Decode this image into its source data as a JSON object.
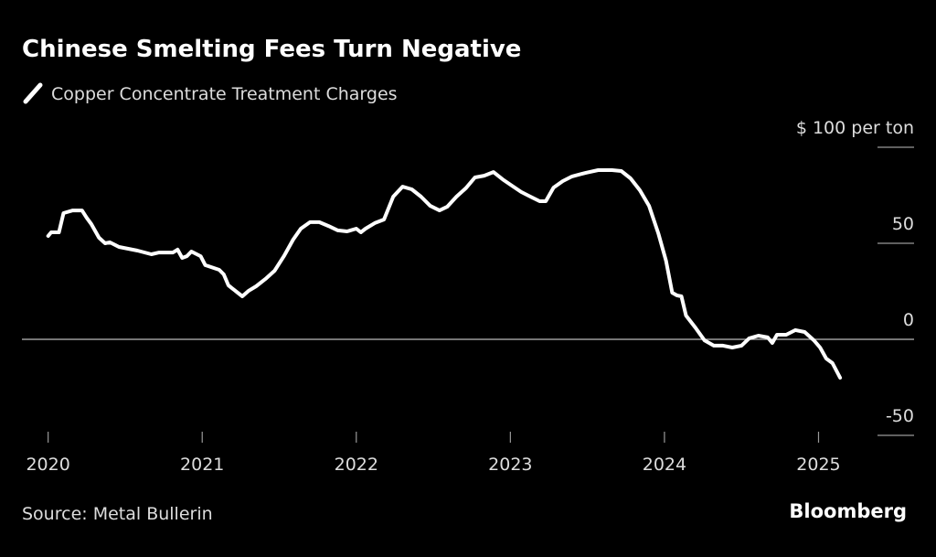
{
  "chart_data": {
    "type": "line",
    "title": "Chinese Smelting Fees Turn Negative",
    "source": "Source: Metal Bullerin",
    "brand": "Bloomberg",
    "series": [
      {
        "name": "Copper Concentrate Treatment Charges",
        "color": "#ffffff",
        "x": [
          2020.0,
          2020.02,
          2020.07,
          2020.1,
          2020.16,
          2020.22,
          2020.25,
          2020.28,
          2020.33,
          2020.37,
          2020.4,
          2020.46,
          2020.58,
          2020.67,
          2020.72,
          2020.81,
          2020.84,
          2020.87,
          2020.9,
          2020.93,
          2020.99,
          2021.02,
          2021.11,
          2021.14,
          2021.17,
          2021.23,
          2021.26,
          2021.3,
          2021.35,
          2021.41,
          2021.47,
          2021.53,
          2021.59,
          2021.64,
          2021.7,
          2021.76,
          2021.82,
          2021.88,
          2021.94,
          2022.0,
          2022.03,
          2022.06,
          2022.12,
          2022.18,
          2022.24,
          2022.3,
          2022.36,
          2022.42,
          2022.48,
          2022.54,
          2022.59,
          2022.65,
          2022.71,
          2022.77,
          2022.83,
          2022.89,
          2022.95,
          2023.01,
          2023.07,
          2023.13,
          2023.19,
          2023.23,
          2023.28,
          2023.34,
          2023.4,
          2023.49,
          2023.57,
          2023.66,
          2023.72,
          2023.78,
          2023.84,
          2023.9,
          2023.96,
          2024.01,
          2024.05,
          2024.08,
          2024.11,
          2024.14,
          2024.2,
          2024.26,
          2024.32,
          2024.38,
          2024.44,
          2024.5,
          2024.55,
          2024.61,
          2024.67,
          2024.7,
          2024.73,
          2024.79,
          2024.85,
          2024.91,
          2024.97,
          2025.01,
          2025.05,
          2025.09,
          2025.14
        ],
        "values": [
          53.8,
          55.7,
          55.7,
          65.7,
          67.1,
          67.1,
          63.3,
          60,
          52.9,
          50,
          50.5,
          48.1,
          46.2,
          44.3,
          45.2,
          45.2,
          46.7,
          42.4,
          43.3,
          45.7,
          43.3,
          38.6,
          36.2,
          33.8,
          28.1,
          24.3,
          22.4,
          25.2,
          27.6,
          31.4,
          35.7,
          43.3,
          51.9,
          57.6,
          61,
          61,
          59,
          56.7,
          56.2,
          57.6,
          55.7,
          57.6,
          60.5,
          62.4,
          74.3,
          79.5,
          78.1,
          74.3,
          69.5,
          67.1,
          69,
          74.3,
          78.6,
          84.3,
          85.2,
          87.1,
          83.3,
          80,
          76.7,
          74.3,
          71.9,
          71.9,
          79,
          82.4,
          84.8,
          86.7,
          88.1,
          88.1,
          87.6,
          83.8,
          77.6,
          69.5,
          55.2,
          41,
          24.3,
          22.9,
          22.4,
          12.4,
          6.2,
          -0.5,
          -3.3,
          -3.3,
          -4.3,
          -3.3,
          0.5,
          1.9,
          1,
          -1.9,
          2.4,
          2.4,
          4.8,
          3.8,
          -0.5,
          -4.3,
          -10,
          -12.4,
          -20
        ]
      }
    ],
    "xlim": [
      2019.83,
      2025.62
    ],
    "xticks": [
      2020,
      2021,
      2022,
      2023,
      2024,
      2025
    ],
    "ylim": [
      -50,
      100
    ],
    "yticks": [
      -50,
      0,
      50,
      {
        "value": 100,
        "label": "$ 100 per ton"
      }
    ]
  }
}
